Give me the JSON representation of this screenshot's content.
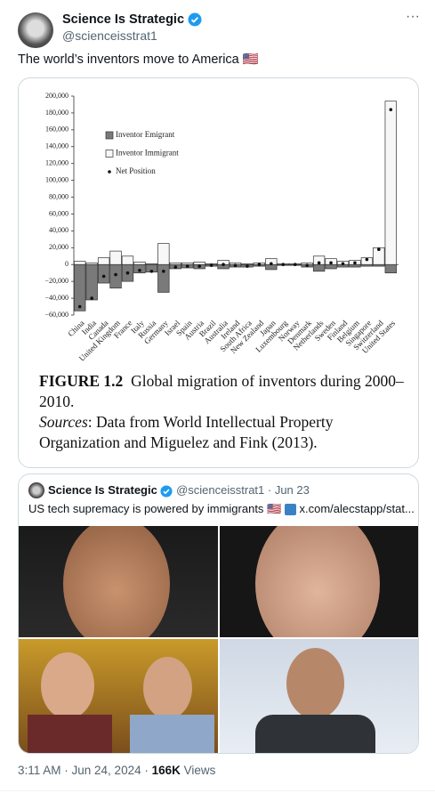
{
  "tweet": {
    "name": "Science Is Strategic",
    "handle": "@scienceisstrat1",
    "text": "The world’s inventors move to America 🇺🇸"
  },
  "chart_data": {
    "type": "bar",
    "categories": [
      "China",
      "India",
      "Canada",
      "United Kingdom",
      "France",
      "Italy",
      "Russia",
      "Germany",
      "Israel",
      "Spain",
      "Austria",
      "Brazil",
      "Australia",
      "Ireland",
      "South Africa",
      "New Zealand",
      "Japan",
      "Luxembourg",
      "Norway",
      "Denmark",
      "Netherlands",
      "Sweden",
      "Finland",
      "Belgium",
      "Singapore",
      "Switzerland",
      "United States"
    ],
    "series": [
      {
        "name": "Inventor Emigrant",
        "color": "#7a7a7a",
        "values": [
          -55000,
          -42000,
          -22000,
          -28000,
          -20000,
          -10000,
          -9000,
          -33000,
          -5000,
          -4000,
          -5000,
          -2000,
          -5000,
          -3000,
          -3000,
          -2000,
          -6000,
          -1000,
          -1000,
          -3000,
          -8000,
          -5000,
          -3000,
          -3000,
          -2000,
          -2000,
          -10000
        ]
      },
      {
        "name": "Inventor Immigrant",
        "color": "#f7f7f7",
        "values": [
          4000,
          2000,
          8000,
          16000,
          10000,
          3000,
          1000,
          25000,
          2000,
          2000,
          3000,
          1000,
          5000,
          2000,
          1000,
          2000,
          7000,
          1000,
          1000,
          2000,
          10000,
          7000,
          4000,
          5000,
          8000,
          20000,
          194000
        ]
      },
      {
        "name": "Net Position",
        "color": "#111111",
        "marker": "dot",
        "values": [
          -50000,
          -40000,
          -14000,
          -12000,
          -10000,
          -7000,
          -8000,
          -8000,
          -3000,
          -2000,
          -2000,
          -1000,
          0,
          -1000,
          -2000,
          0,
          1000,
          0,
          0,
          -1000,
          2000,
          2000,
          1000,
          2000,
          6000,
          18000,
          184000
        ]
      }
    ],
    "ylim": [
      -60000,
      200000
    ],
    "yticks": [
      {
        "value": -60000,
        "label": "−60,000"
      },
      {
        "value": -40000,
        "label": "−40,000"
      },
      {
        "value": -20000,
        "label": "−20,000"
      },
      0,
      {
        "value": 20000,
        "label": "20,000"
      },
      {
        "value": 40000,
        "label": "40,000"
      },
      {
        "value": 60000,
        "label": "60,000"
      },
      {
        "value": 80000,
        "label": "80,000"
      },
      {
        "value": 100000,
        "label": "100,000"
      },
      {
        "value": 120000,
        "label": "120,000"
      },
      {
        "value": 140000,
        "label": "140,000"
      },
      {
        "value": 160000,
        "label": "160,000"
      },
      {
        "value": 180000,
        "label": "180,000"
      },
      {
        "value": 200000,
        "label": "200,000"
      }
    ],
    "legend": "upper left",
    "grid": false
  },
  "caption": {
    "label": "FIGURE 1.2",
    "text": "Global migration of inventors during 2000–2010.",
    "sources_label": "Sources",
    "sources_text": ": Data from World Intellectual Property Organization and Miguelez and Fink (2013)."
  },
  "quote": {
    "name": "Science Is Strategic",
    "handle_date": "@scienceisstrat1 · Jun 23",
    "text": "US tech supremacy is powered by immigrants 🇺🇸",
    "link": "x.com/alecstapp/stat..."
  },
  "footer": {
    "timestamp": "3:11 AM · Jun 24, 2024 ·",
    "views": "166K",
    "views_label": "Views"
  }
}
